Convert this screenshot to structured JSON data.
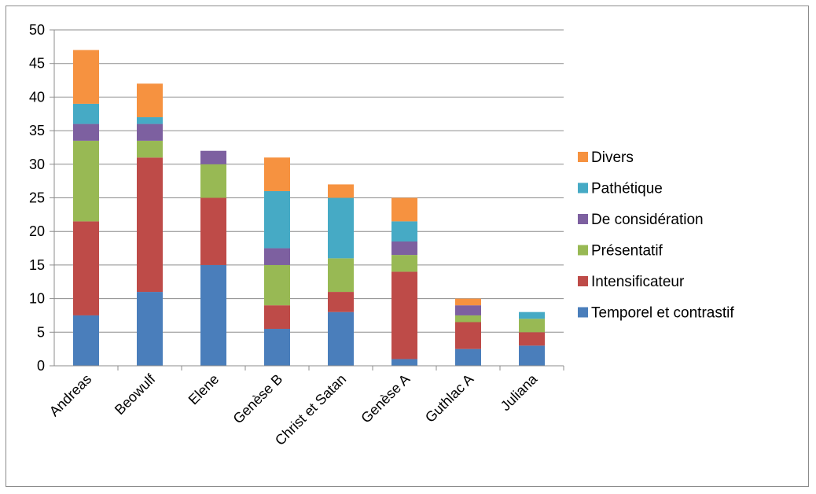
{
  "chart_data": {
    "type": "bar",
    "stacked": true,
    "categories": [
      "Andreas",
      "Beowulf",
      "Elene",
      "Genèse B",
      "Christ et Satan",
      "Genèse A",
      "Guthlac A",
      "Juliana"
    ],
    "series": [
      {
        "name": "Temporel et contrastif",
        "color": "#4a7ebb",
        "values": [
          7.5,
          11,
          15,
          5.5,
          8,
          1,
          2.5,
          3
        ]
      },
      {
        "name": "Intensificateur",
        "color": "#be4b48",
        "values": [
          14,
          20,
          10,
          3.5,
          3,
          13,
          4,
          2
        ]
      },
      {
        "name": "Présentatif",
        "color": "#98b954",
        "values": [
          12,
          2.5,
          5,
          6,
          5,
          2.5,
          1,
          2
        ]
      },
      {
        "name": "De considération",
        "color": "#7d60a0",
        "values": [
          2.5,
          2.5,
          2,
          2.5,
          0,
          2,
          1.5,
          0
        ]
      },
      {
        "name": "Pathétique",
        "color": "#46aac5",
        "values": [
          3,
          1,
          0,
          8.5,
          9,
          3,
          0,
          1
        ]
      },
      {
        "name": "Divers",
        "color": "#f69240",
        "values": [
          8,
          5,
          0,
          5,
          2,
          3.5,
          1,
          0
        ]
      }
    ],
    "y_ticks": [
      "0",
      "5",
      "10",
      "15",
      "20",
      "25",
      "30",
      "35",
      "40",
      "45",
      "50"
    ],
    "ylim": [
      0,
      50
    ],
    "grid": true,
    "legend_position": "right",
    "title": "",
    "xlabel": "",
    "ylabel": ""
  }
}
